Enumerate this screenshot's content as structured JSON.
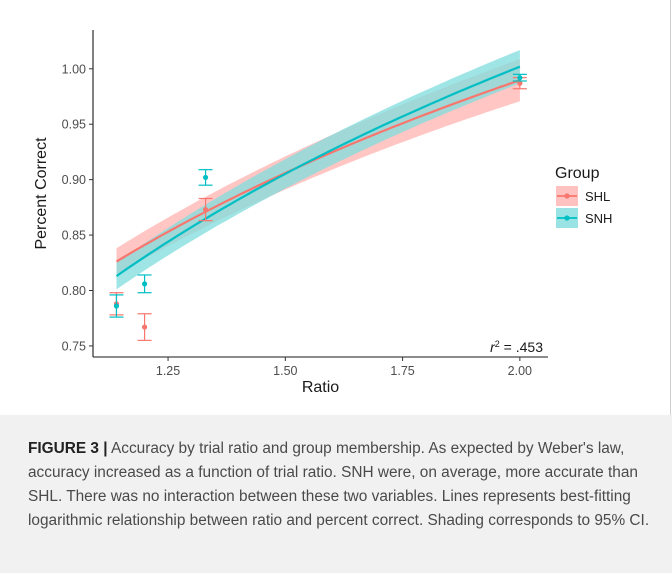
{
  "chart_data": {
    "type": "line",
    "xlabel": "Ratio",
    "ylabel": "Percent Correct",
    "xlim": [
      1.09,
      2.06
    ],
    "ylim": [
      0.74,
      1.035
    ],
    "x_ticks": [
      1.25,
      1.5,
      1.75,
      2.0
    ],
    "x_tick_labels": [
      "1.25",
      "1.50",
      "1.75",
      "2.00"
    ],
    "y_ticks": [
      0.75,
      0.8,
      0.85,
      0.9,
      0.95,
      1.0
    ],
    "y_tick_labels": [
      "0.75",
      "0.80",
      "0.85",
      "0.90",
      "0.95",
      "1.00"
    ],
    "grid": false,
    "legend": {
      "title": "Group",
      "placement": "right"
    },
    "annotation": {
      "r2_label": "r",
      "r2_value": " = .453"
    },
    "series": [
      {
        "name": "SHL",
        "color": "#F8766D",
        "band_color": "#FFB3B0",
        "fit": {
          "a": 0.788,
          "b": 0.291
        },
        "ci_half_width": [
          0.012,
          0.019
        ],
        "x": [
          1.14,
          1.2,
          1.33,
          2.0
        ],
        "y": [
          0.788,
          0.767,
          0.873,
          0.987
        ],
        "err": [
          0.01,
          0.012,
          0.01,
          0.005
        ]
      },
      {
        "name": "SNH",
        "color": "#00BFC4",
        "band_color": "#80DCDD",
        "fit": {
          "a": 0.769,
          "b": 0.336
        },
        "ci_half_width": [
          0.012,
          0.015
        ],
        "x": [
          1.14,
          1.2,
          1.33,
          2.0
        ],
        "y": [
          0.786,
          0.806,
          0.902,
          0.992
        ],
        "err": [
          0.01,
          0.008,
          0.007,
          0.003
        ]
      }
    ]
  },
  "caption": {
    "label": "FIGURE 3 |",
    "text": " Accuracy by trial ratio and group membership. As expected by Weber's law, accuracy increased as a function of trial ratio. SNH were, on average, more accurate than SHL. There was no interaction between these two variables. Lines represents best-fitting logarithmic relationship between ratio and percent correct. Shading corresponds to 95% CI."
  }
}
